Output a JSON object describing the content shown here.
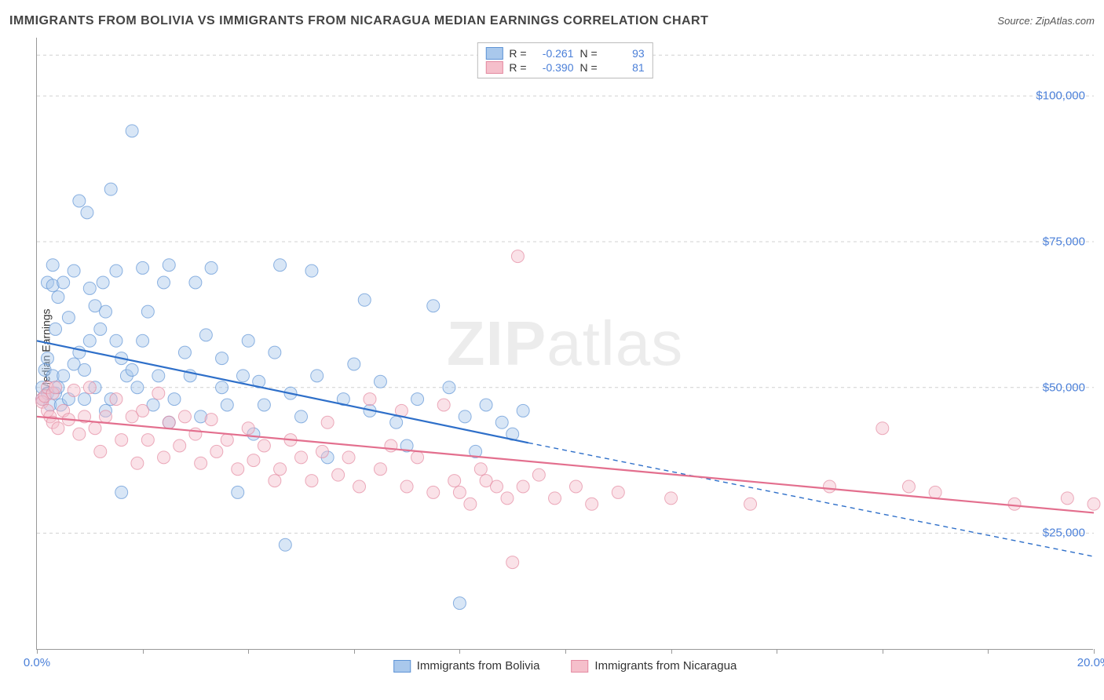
{
  "title": "IMMIGRANTS FROM BOLIVIA VS IMMIGRANTS FROM NICARAGUA MEDIAN EARNINGS CORRELATION CHART",
  "source_label": "Source:",
  "source_name": "ZipAtlas.com",
  "watermark_a": "ZIP",
  "watermark_b": "atlas",
  "chart": {
    "type": "scatter-correlation",
    "ylabel": "Median Earnings",
    "xlim": [
      0,
      20
    ],
    "ylim": [
      5000,
      110000
    ],
    "x_ticks": [
      0,
      2,
      4,
      6,
      8,
      10,
      12,
      14,
      16,
      18,
      20
    ],
    "x_tick_labels": {
      "0": "0.0%",
      "20": "20.0%"
    },
    "y_gridlines": [
      25000,
      50000,
      75000,
      100000
    ],
    "y_tick_labels": {
      "25000": "$25,000",
      "50000": "$50,000",
      "75000": "$75,000",
      "100000": "$100,000"
    },
    "background_color": "#ffffff",
    "grid_color": "#d0d0d0",
    "axis_color": "#999999",
    "tick_label_color": "#4a7fd8",
    "marker_radius": 8,
    "marker_opacity": 0.45,
    "line_width": 2.2,
    "series": [
      {
        "id": "bolivia",
        "label": "Immigrants from Bolivia",
        "fill": "#a9c8ec",
        "stroke": "#5f94d6",
        "line_color": "#2e6fc9",
        "R": "-0.261",
        "N": "93",
        "trend": {
          "x1": 0,
          "y1": 58000,
          "x2": 9.3,
          "y2": 40500,
          "extend_x": 20,
          "extend_y": 21000
        },
        "points": [
          [
            0.1,
            48000
          ],
          [
            0.1,
            50000
          ],
          [
            0.15,
            53000
          ],
          [
            0.2,
            49000
          ],
          [
            0.2,
            55000
          ],
          [
            0.2,
            68000
          ],
          [
            0.25,
            47000
          ],
          [
            0.3,
            52000
          ],
          [
            0.3,
            67500
          ],
          [
            0.3,
            71000
          ],
          [
            0.35,
            49000
          ],
          [
            0.35,
            60000
          ],
          [
            0.4,
            50000
          ],
          [
            0.4,
            65500
          ],
          [
            0.45,
            47000
          ],
          [
            0.5,
            52000
          ],
          [
            0.5,
            68000
          ],
          [
            0.6,
            48000
          ],
          [
            0.6,
            62000
          ],
          [
            0.7,
            54000
          ],
          [
            0.7,
            70000
          ],
          [
            0.8,
            82000
          ],
          [
            0.8,
            56000
          ],
          [
            0.9,
            48000
          ],
          [
            0.9,
            53000
          ],
          [
            0.95,
            80000
          ],
          [
            1.0,
            67000
          ],
          [
            1.0,
            58000
          ],
          [
            1.1,
            64000
          ],
          [
            1.1,
            50000
          ],
          [
            1.2,
            60000
          ],
          [
            1.25,
            68000
          ],
          [
            1.3,
            46000
          ],
          [
            1.3,
            63000
          ],
          [
            1.4,
            84000
          ],
          [
            1.4,
            48000
          ],
          [
            1.5,
            58000
          ],
          [
            1.5,
            70000
          ],
          [
            1.6,
            55000
          ],
          [
            1.6,
            32000
          ],
          [
            1.7,
            52000
          ],
          [
            1.8,
            53000
          ],
          [
            1.8,
            94000
          ],
          [
            1.9,
            50000
          ],
          [
            2.0,
            58000
          ],
          [
            2.0,
            70500
          ],
          [
            2.1,
            63000
          ],
          [
            2.2,
            47000
          ],
          [
            2.3,
            52000
          ],
          [
            2.4,
            68000
          ],
          [
            2.5,
            44000
          ],
          [
            2.5,
            71000
          ],
          [
            2.6,
            48000
          ],
          [
            2.8,
            56000
          ],
          [
            2.9,
            52000
          ],
          [
            3.0,
            68000
          ],
          [
            3.1,
            45000
          ],
          [
            3.2,
            59000
          ],
          [
            3.3,
            70500
          ],
          [
            3.5,
            50000
          ],
          [
            3.5,
            55000
          ],
          [
            3.6,
            47000
          ],
          [
            3.8,
            32000
          ],
          [
            3.9,
            52000
          ],
          [
            4.0,
            58000
          ],
          [
            4.1,
            42000
          ],
          [
            4.2,
            51000
          ],
          [
            4.3,
            47000
          ],
          [
            4.5,
            56000
          ],
          [
            4.6,
            71000
          ],
          [
            4.7,
            23000
          ],
          [
            4.8,
            49000
          ],
          [
            5.0,
            45000
          ],
          [
            5.2,
            70000
          ],
          [
            5.3,
            52000
          ],
          [
            5.5,
            38000
          ],
          [
            5.8,
            48000
          ],
          [
            6.0,
            54000
          ],
          [
            6.2,
            65000
          ],
          [
            6.3,
            46000
          ],
          [
            6.5,
            51000
          ],
          [
            6.8,
            44000
          ],
          [
            7.0,
            40000
          ],
          [
            7.2,
            48000
          ],
          [
            7.5,
            64000
          ],
          [
            7.8,
            50000
          ],
          [
            8.0,
            13000
          ],
          [
            8.1,
            45000
          ],
          [
            8.3,
            39000
          ],
          [
            8.5,
            47000
          ],
          [
            8.8,
            44000
          ],
          [
            9.0,
            42000
          ],
          [
            9.2,
            46000
          ]
        ]
      },
      {
        "id": "nicaragua",
        "label": "Immigrants from Nicaragua",
        "fill": "#f5bfcb",
        "stroke": "#e48aa1",
        "line_color": "#e36f8e",
        "R": "-0.390",
        "N": "81",
        "trend": {
          "x1": 0,
          "y1": 45000,
          "x2": 20,
          "y2": 28500,
          "extend_x": 20,
          "extend_y": 28500
        },
        "points": [
          [
            0.1,
            48000
          ],
          [
            0.1,
            47500
          ],
          [
            0.15,
            48500
          ],
          [
            0.2,
            46000
          ],
          [
            0.2,
            50000
          ],
          [
            0.25,
            45000
          ],
          [
            0.3,
            49000
          ],
          [
            0.3,
            44000
          ],
          [
            0.35,
            50000
          ],
          [
            0.4,
            43000
          ],
          [
            0.5,
            46000
          ],
          [
            0.6,
            44500
          ],
          [
            0.7,
            49500
          ],
          [
            0.8,
            42000
          ],
          [
            0.9,
            45000
          ],
          [
            1.0,
            50000
          ],
          [
            1.1,
            43000
          ],
          [
            1.2,
            39000
          ],
          [
            1.3,
            45000
          ],
          [
            1.5,
            48000
          ],
          [
            1.6,
            41000
          ],
          [
            1.8,
            45000
          ],
          [
            1.9,
            37000
          ],
          [
            2.0,
            46000
          ],
          [
            2.1,
            41000
          ],
          [
            2.3,
            49000
          ],
          [
            2.4,
            38000
          ],
          [
            2.5,
            44000
          ],
          [
            2.7,
            40000
          ],
          [
            2.8,
            45000
          ],
          [
            3.0,
            42000
          ],
          [
            3.1,
            37000
          ],
          [
            3.3,
            44500
          ],
          [
            3.4,
            39000
          ],
          [
            3.6,
            41000
          ],
          [
            3.8,
            36000
          ],
          [
            4.0,
            43000
          ],
          [
            4.1,
            37500
          ],
          [
            4.3,
            40000
          ],
          [
            4.5,
            34000
          ],
          [
            4.6,
            36000
          ],
          [
            4.8,
            41000
          ],
          [
            5.0,
            38000
          ],
          [
            5.2,
            34000
          ],
          [
            5.4,
            39000
          ],
          [
            5.5,
            44000
          ],
          [
            5.7,
            35000
          ],
          [
            5.9,
            38000
          ],
          [
            6.1,
            33000
          ],
          [
            6.3,
            48000
          ],
          [
            6.5,
            36000
          ],
          [
            6.7,
            40000
          ],
          [
            6.9,
            46000
          ],
          [
            7.0,
            33000
          ],
          [
            7.2,
            38000
          ],
          [
            7.5,
            32000
          ],
          [
            7.7,
            47000
          ],
          [
            7.9,
            34000
          ],
          [
            8.0,
            32000
          ],
          [
            8.2,
            30000
          ],
          [
            8.4,
            36000
          ],
          [
            8.5,
            34000
          ],
          [
            8.7,
            33000
          ],
          [
            8.9,
            31000
          ],
          [
            9.0,
            20000
          ],
          [
            9.1,
            72500
          ],
          [
            9.2,
            33000
          ],
          [
            9.5,
            35000
          ],
          [
            9.8,
            31000
          ],
          [
            10.2,
            33000
          ],
          [
            10.5,
            30000
          ],
          [
            11.0,
            32000
          ],
          [
            12.0,
            31000
          ],
          [
            13.5,
            30000
          ],
          [
            15.0,
            33000
          ],
          [
            16.0,
            43000
          ],
          [
            16.5,
            33000
          ],
          [
            17.0,
            32000
          ],
          [
            18.5,
            30000
          ],
          [
            19.5,
            31000
          ],
          [
            20.0,
            30000
          ]
        ]
      }
    ]
  },
  "stats_legend": {
    "r_label": "R  =",
    "n_label": "N  ="
  }
}
